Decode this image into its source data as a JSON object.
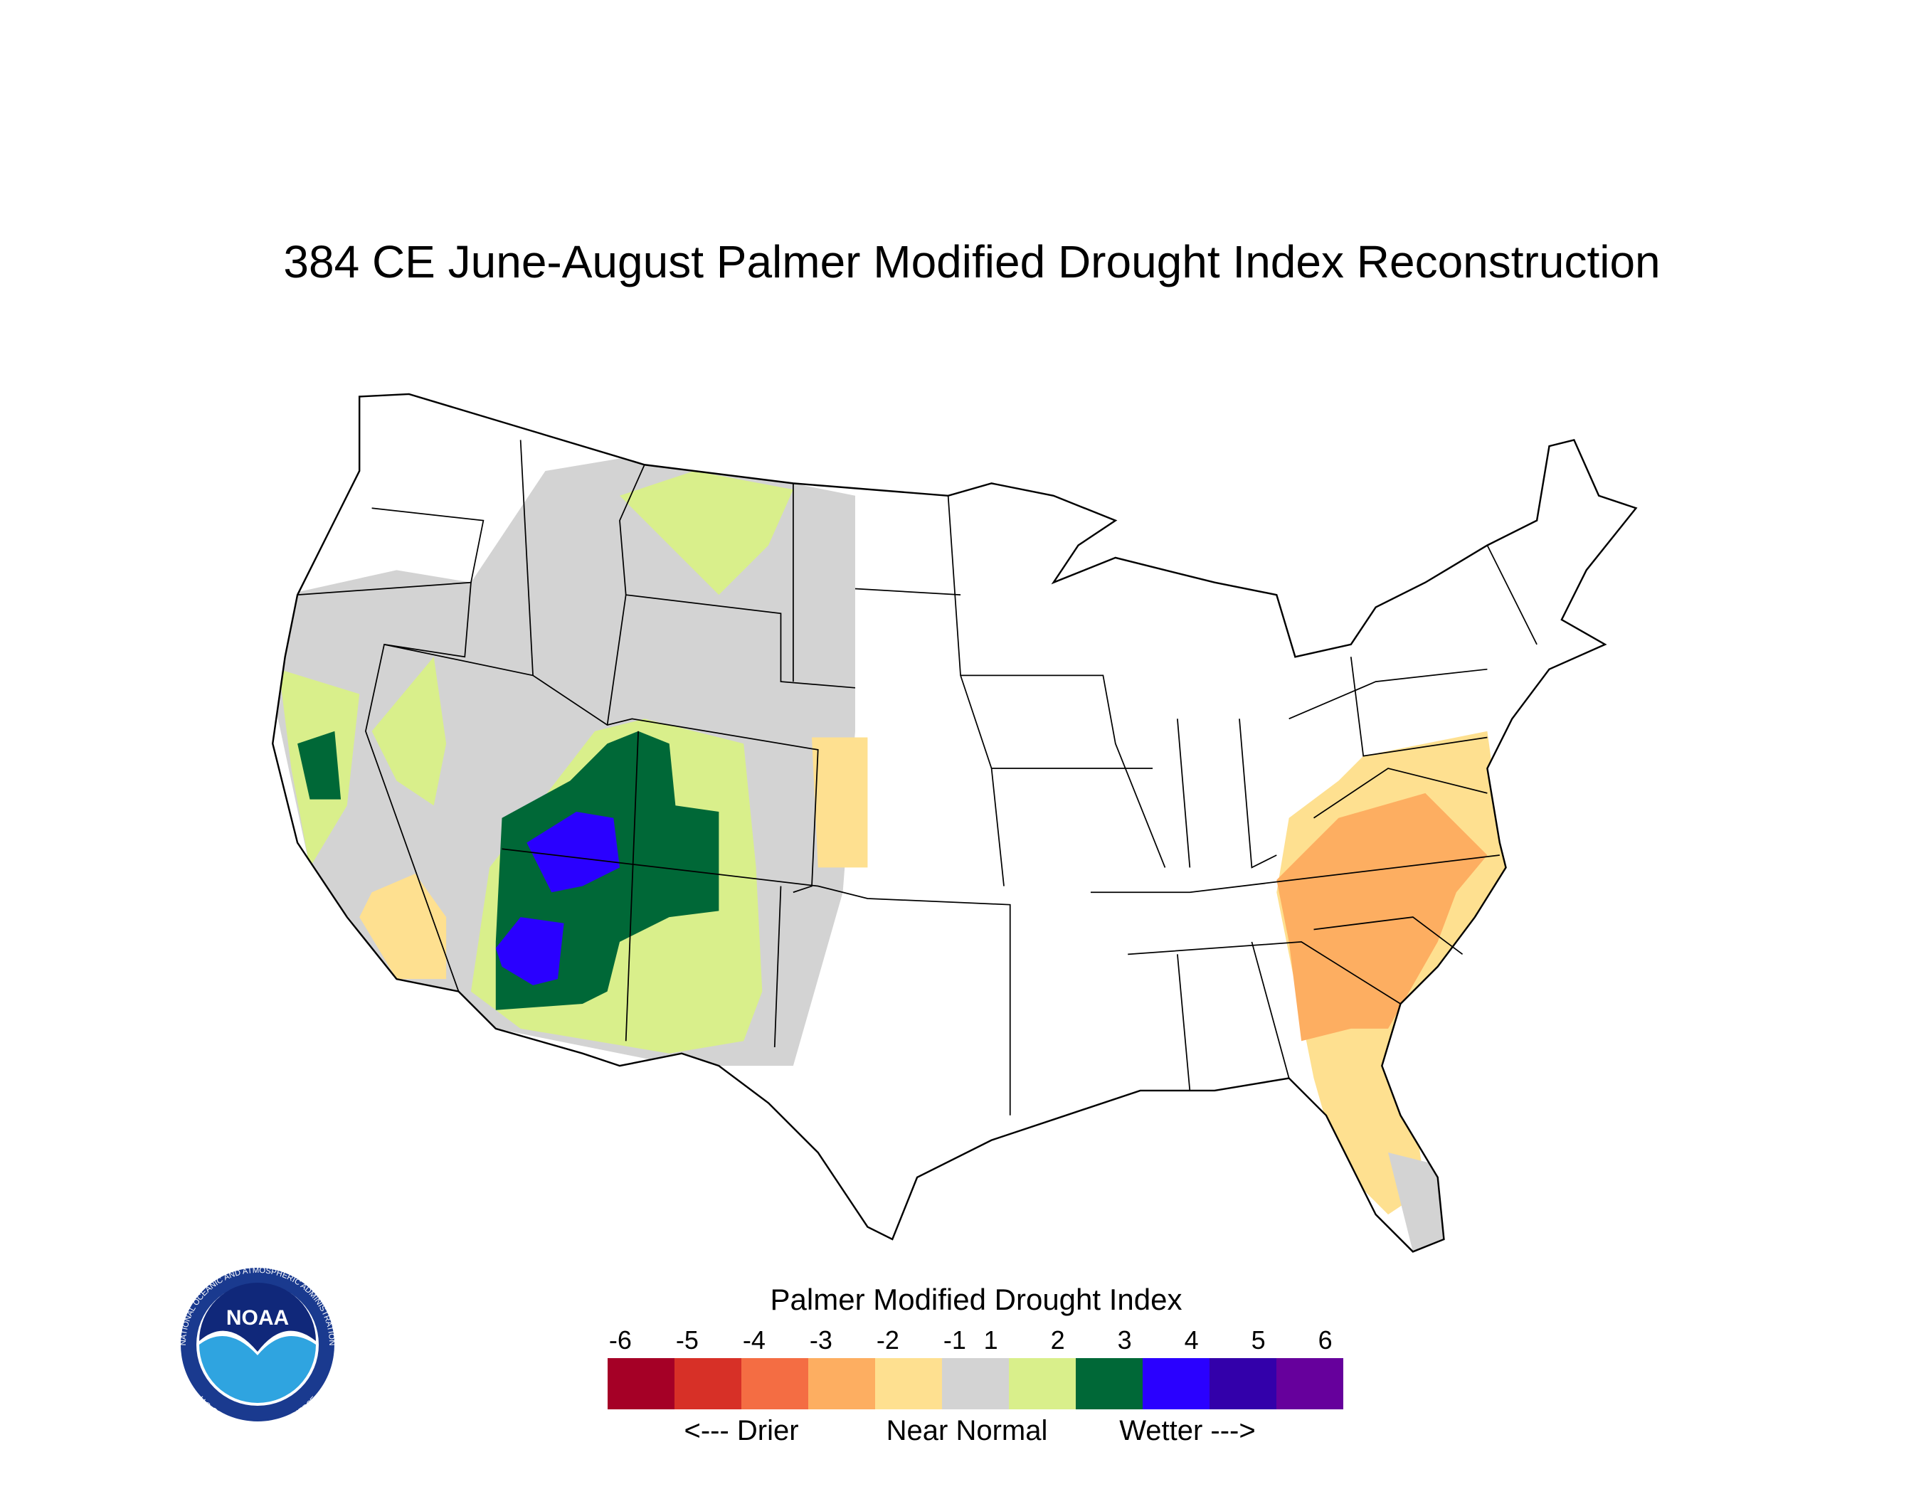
{
  "title": "384 CE  June-August  Palmer Modified Drought Index Reconstruction",
  "legend": {
    "title": "Palmer Modified Drought Index",
    "ticks": [
      -6,
      -5,
      -4,
      -3,
      -2,
      -1,
      1,
      2,
      3,
      4,
      5,
      6
    ],
    "colors": [
      "#a50026",
      "#d73027",
      "#f46d43",
      "#fdae61",
      "#fee090",
      "#d3d3d3",
      "#d9ef8b",
      "#006837",
      "#2a00ff",
      "#3300aa",
      "#66009c"
    ],
    "labels": [
      "<--- Drier",
      "Near Normal",
      "Wetter --->"
    ]
  },
  "logo": {
    "name": "NOAA",
    "top_text": "NATIONAL OCEANIC AND ATMOSPHERIC ADMINISTRATION",
    "bottom_text": "U.S. DEPARTMENT OF COMMERCE"
  }
}
